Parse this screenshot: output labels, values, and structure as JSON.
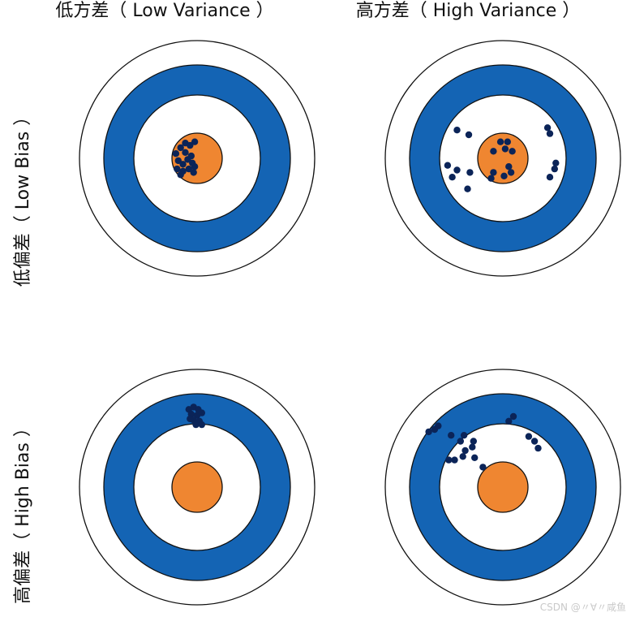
{
  "columns": [
    "低方差（ Low Variance ）",
    "高方差（ High Variance ）"
  ],
  "rows": [
    "低偏差（ Low Bias ）",
    "高偏差（ High Bias ）"
  ],
  "colors": {
    "ring_blue": "#1464b4",
    "bullseye": "#ef8631",
    "hit": "#0b2458",
    "outline": "#111111"
  },
  "targets": [
    {
      "name": "low-bias-low-variance",
      "row": 0,
      "col": 0,
      "hits": [
        [
          -0.18,
          -0.04
        ],
        [
          -0.14,
          -0.09
        ],
        [
          -0.1,
          -0.13
        ],
        [
          -0.06,
          -0.11
        ],
        [
          -0.02,
          -0.14
        ],
        [
          -0.16,
          0.02
        ],
        [
          -0.12,
          0.05
        ],
        [
          -0.08,
          0.01
        ],
        [
          -0.04,
          0.04
        ],
        [
          -0.17,
          0.09
        ],
        [
          -0.12,
          0.11
        ],
        [
          -0.07,
          0.09
        ],
        [
          -0.03,
          0.12
        ],
        [
          -0.1,
          -0.05
        ],
        [
          -0.05,
          -0.02
        ],
        [
          -0.14,
          0.14
        ],
        [
          -0.02,
          0.07
        ]
      ]
    },
    {
      "name": "low-bias-high-variance",
      "row": 0,
      "col": 1,
      "hits": [
        [
          -0.39,
          -0.24
        ],
        [
          -0.29,
          -0.2
        ],
        [
          -0.47,
          0.06
        ],
        [
          -0.39,
          0.1
        ],
        [
          -0.43,
          0.16
        ],
        [
          -0.28,
          0.12
        ],
        [
          -0.3,
          0.26
        ],
        [
          -0.02,
          -0.14
        ],
        [
          0.04,
          -0.14
        ],
        [
          -0.08,
          -0.06
        ],
        [
          0.08,
          -0.06
        ],
        [
          0.02,
          -0.08
        ],
        [
          -0.08,
          0.12
        ],
        [
          0.05,
          0.07
        ],
        [
          0.07,
          0.12
        ],
        [
          0.01,
          0.15
        ],
        [
          -0.1,
          0.17
        ],
        [
          0.38,
          -0.26
        ],
        [
          0.4,
          -0.21
        ],
        [
          0.45,
          0.04
        ],
        [
          0.44,
          0.09
        ],
        [
          0.4,
          0.16
        ]
      ]
    },
    {
      "name": "high-bias-low-variance",
      "row": 1,
      "col": 0,
      "hits": [
        [
          -0.07,
          -0.66
        ],
        [
          -0.03,
          -0.68
        ],
        [
          0.01,
          -0.66
        ],
        [
          -0.05,
          -0.62
        ],
        [
          0.0,
          -0.61
        ],
        [
          0.04,
          -0.63
        ],
        [
          -0.03,
          -0.57
        ],
        [
          0.02,
          -0.56
        ],
        [
          -0.01,
          -0.53
        ],
        [
          0.04,
          -0.53
        ],
        [
          -0.06,
          -0.58
        ]
      ]
    },
    {
      "name": "high-bias-high-variance",
      "row": 1,
      "col": 1,
      "hits": [
        [
          -0.63,
          -0.47
        ],
        [
          -0.58,
          -0.49
        ],
        [
          -0.55,
          -0.52
        ],
        [
          -0.44,
          -0.44
        ],
        [
          -0.33,
          -0.44
        ],
        [
          -0.36,
          -0.39
        ],
        [
          -0.25,
          -0.39
        ],
        [
          -0.26,
          -0.34
        ],
        [
          -0.32,
          -0.31
        ],
        [
          -0.34,
          -0.26
        ],
        [
          -0.41,
          -0.23
        ],
        [
          -0.46,
          -0.23
        ],
        [
          -0.24,
          -0.25
        ],
        [
          -0.17,
          -0.17
        ],
        [
          0.05,
          -0.56
        ],
        [
          0.09,
          -0.6
        ],
        [
          0.22,
          -0.43
        ],
        [
          0.27,
          -0.39
        ],
        [
          0.3,
          -0.33
        ]
      ]
    }
  ],
  "watermark": "CSDN @〃∀〃咸鱼"
}
